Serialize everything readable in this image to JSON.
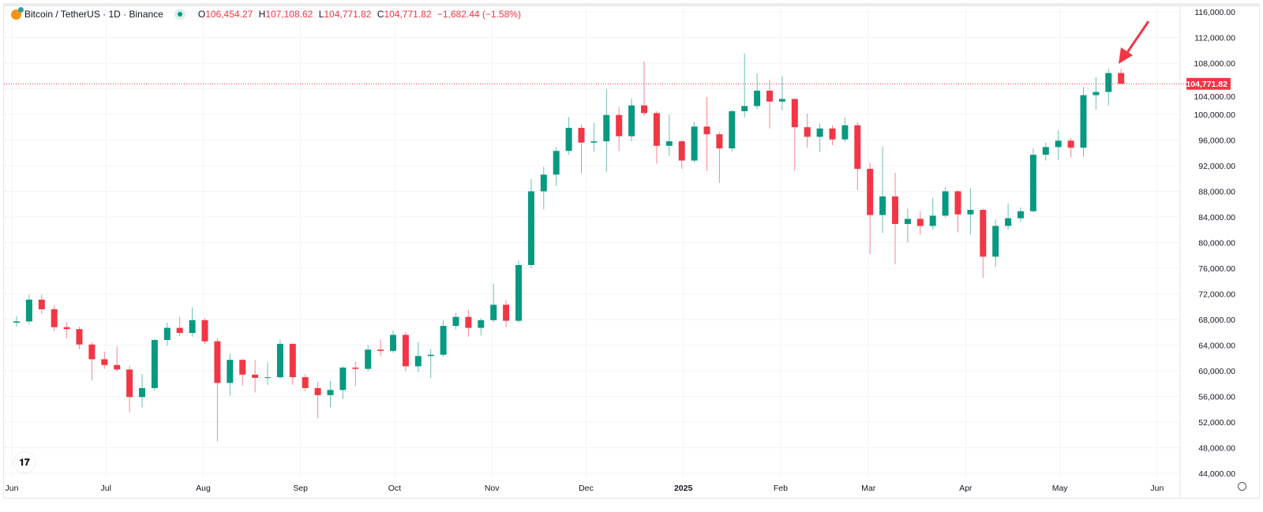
{
  "header": {
    "symbol": "Bitcoin / TetherUS · 1D · Binance",
    "icon": "bitcoin-coin-icon",
    "status_icon": "market-open-dot",
    "o_label": "O",
    "o_value": "106,454.27",
    "h_label": "H",
    "h_value": "107,108.62",
    "l_label": "L",
    "l_value": "104,771.82",
    "c_label": "C",
    "c_value": "104,771.82",
    "change": "−1,682.44 (−1.58%)"
  },
  "logo_text": "TV",
  "colors": {
    "up": "#089981",
    "down": "#f23645",
    "annotation_arrow": "#f23645"
  },
  "chart_data": {
    "type": "candlestick",
    "title": "",
    "xlabel": "",
    "ylabel": "",
    "ylim": [
      44000,
      116000
    ],
    "grid": true,
    "last_price": 104771.82,
    "last_price_label": "104,771.82",
    "y_ticks": [
      "116,000.00",
      "112,000.00",
      "108,000.00",
      "104,000.00",
      "100,000.00",
      "96,000.00",
      "92,000.00",
      "88,000.00",
      "84,000.00",
      "80,000.00",
      "76,000.00",
      "72,000.00",
      "68,000.00",
      "64,000.00",
      "60,000.00",
      "56,000.00",
      "52,000.00",
      "48,000.00",
      "44,000.00"
    ],
    "x_ticks": [
      {
        "label": "Jun",
        "date": "2024-06-01"
      },
      {
        "label": "Jul",
        "date": "2024-07-01"
      },
      {
        "label": "Aug",
        "date": "2024-08-01"
      },
      {
        "label": "Sep",
        "date": "2024-09-01"
      },
      {
        "label": "Oct",
        "date": "2024-10-01"
      },
      {
        "label": "Nov",
        "date": "2024-11-01"
      },
      {
        "label": "Dec",
        "date": "2024-12-01"
      },
      {
        "label": "2025",
        "date": "2025-01-01"
      },
      {
        "label": "Feb",
        "date": "2025-02-01"
      },
      {
        "label": "Mar",
        "date": "2025-03-01"
      },
      {
        "label": "Apr",
        "date": "2025-04-01"
      },
      {
        "label": "May",
        "date": "2025-05-01"
      },
      {
        "label": "Jun",
        "date": "2025-06-01"
      }
    ],
    "columns": [
      "date",
      "open",
      "high",
      "low",
      "close"
    ],
    "candles": [
      [
        "2024-06-01",
        67500,
        68500,
        66900,
        67700
      ],
      [
        "2024-06-05",
        67700,
        71900,
        67300,
        71100
      ],
      [
        "2024-06-09",
        71100,
        71900,
        68900,
        69600
      ],
      [
        "2024-06-13",
        69600,
        70200,
        66200,
        66800
      ],
      [
        "2024-06-17",
        66800,
        67600,
        65100,
        66500
      ],
      [
        "2024-06-21",
        66500,
        66900,
        63400,
        64100
      ],
      [
        "2024-06-25",
        64100,
        64500,
        58500,
        61800
      ],
      [
        "2024-06-29",
        61800,
        63000,
        60300,
        60900
      ],
      [
        "2024-07-03",
        60900,
        63800,
        59900,
        60200
      ],
      [
        "2024-07-07",
        60200,
        60800,
        53500,
        55900
      ],
      [
        "2024-07-11",
        55900,
        59500,
        54300,
        57300
      ],
      [
        "2024-07-15",
        57300,
        65000,
        56900,
        64800
      ],
      [
        "2024-07-19",
        64800,
        67500,
        63900,
        66700
      ],
      [
        "2024-07-23",
        66700,
        68400,
        65400,
        65900
      ],
      [
        "2024-07-27",
        65900,
        69900,
        65300,
        67900
      ],
      [
        "2024-07-31",
        67900,
        68200,
        64200,
        64600
      ],
      [
        "2024-08-04",
        64600,
        65100,
        49000,
        58100
      ],
      [
        "2024-08-08",
        58100,
        62700,
        56100,
        61700
      ],
      [
        "2024-08-12",
        61700,
        61900,
        57700,
        59400
      ],
      [
        "2024-08-16",
        59400,
        61700,
        56600,
        58900
      ],
      [
        "2024-08-20",
        58900,
        61300,
        57800,
        59000
      ],
      [
        "2024-08-24",
        59000,
        64900,
        58700,
        64200
      ],
      [
        "2024-08-28",
        64200,
        64300,
        57800,
        59000
      ],
      [
        "2024-09-01",
        59000,
        59500,
        56800,
        57300
      ],
      [
        "2024-09-05",
        57300,
        58300,
        52600,
        56200
      ],
      [
        "2024-09-09",
        56200,
        58400,
        54300,
        57000
      ],
      [
        "2024-09-13",
        57000,
        60700,
        55600,
        60500
      ],
      [
        "2024-09-17",
        60500,
        61400,
        57600,
        60300
      ],
      [
        "2024-09-21",
        60300,
        64000,
        59900,
        63300
      ],
      [
        "2024-09-25",
        63300,
        64900,
        62300,
        63100
      ],
      [
        "2024-09-29",
        63100,
        66300,
        62800,
        65600
      ],
      [
        "2024-10-03",
        65600,
        66100,
        59900,
        60700
      ],
      [
        "2024-10-07",
        60700,
        64500,
        59800,
        62300
      ],
      [
        "2024-10-11",
        62300,
        63400,
        58900,
        62500
      ],
      [
        "2024-10-15",
        62500,
        67900,
        62200,
        67000
      ],
      [
        "2024-10-19",
        67000,
        69000,
        66500,
        68400
      ],
      [
        "2024-10-23",
        68400,
        69500,
        65300,
        66700
      ],
      [
        "2024-10-27",
        66700,
        68200,
        65500,
        67900
      ],
      [
        "2024-10-31",
        67900,
        73600,
        67600,
        70300
      ],
      [
        "2024-11-04",
        70300,
        71000,
        66800,
        67800
      ],
      [
        "2024-11-08",
        67800,
        77200,
        67500,
        76500
      ],
      [
        "2024-11-12",
        76500,
        89900,
        76000,
        88000
      ],
      [
        "2024-11-16",
        88000,
        91800,
        85200,
        90600
      ],
      [
        "2024-11-20",
        90600,
        94900,
        88800,
        94300
      ],
      [
        "2024-11-24",
        94300,
        99600,
        93700,
        97900
      ],
      [
        "2024-11-28",
        97900,
        98400,
        90800,
        95600
      ],
      [
        "2024-12-02",
        95600,
        98700,
        94200,
        95800
      ],
      [
        "2024-12-06",
        95800,
        103900,
        91000,
        99900
      ],
      [
        "2024-12-10",
        99900,
        101200,
        94300,
        96600
      ],
      [
        "2024-12-14",
        96600,
        102500,
        95800,
        101400
      ],
      [
        "2024-12-18",
        101400,
        108300,
        99800,
        100200
      ],
      [
        "2024-12-22",
        100200,
        100500,
        92300,
        95100
      ],
      [
        "2024-12-26",
        95100,
        99900,
        93500,
        95800
      ],
      [
        "2024-12-30",
        95800,
        96000,
        91500,
        92800
      ],
      [
        "2025-01-03",
        92800,
        98900,
        92500,
        98100
      ],
      [
        "2025-01-07",
        98100,
        102700,
        91200,
        96900
      ],
      [
        "2025-01-11",
        96900,
        97300,
        89300,
        94700
      ],
      [
        "2025-01-15",
        94700,
        100700,
        94200,
        100500
      ],
      [
        "2025-01-19",
        100500,
        109500,
        99500,
        101300
      ],
      [
        "2025-01-23",
        101300,
        106400,
        100800,
        103700
      ],
      [
        "2025-01-27",
        103700,
        105300,
        97800,
        102000
      ],
      [
        "2025-01-31",
        102000,
        106000,
        100600,
        102400
      ],
      [
        "2025-02-04",
        102400,
        102500,
        91200,
        98000
      ],
      [
        "2025-02-08",
        98000,
        100100,
        94800,
        96500
      ],
      [
        "2025-02-12",
        96500,
        98600,
        94100,
        97800
      ],
      [
        "2025-02-16",
        97800,
        98300,
        95200,
        96100
      ],
      [
        "2025-02-20",
        96100,
        99500,
        95700,
        98300
      ],
      [
        "2025-02-24",
        98300,
        98800,
        88200,
        91500
      ],
      [
        "2025-02-28",
        91500,
        92500,
        78200,
        84300
      ],
      [
        "2025-03-04",
        84300,
        95000,
        81500,
        87200
      ],
      [
        "2025-03-08",
        87200,
        90900,
        76600,
        82900
      ],
      [
        "2025-03-12",
        82900,
        85300,
        80000,
        83700
      ],
      [
        "2025-03-16",
        83700,
        84900,
        81200,
        82600
      ],
      [
        "2025-03-20",
        82600,
        87000,
        82000,
        84200
      ],
      [
        "2025-03-24",
        84200,
        88700,
        83900,
        88000
      ],
      [
        "2025-03-28",
        88000,
        88200,
        81600,
        84400
      ],
      [
        "2025-04-01",
        84400,
        88500,
        81300,
        85100
      ],
      [
        "2025-04-05",
        85100,
        85300,
        74500,
        77800
      ],
      [
        "2025-04-09",
        77800,
        83600,
        76200,
        82600
      ],
      [
        "2025-04-13",
        82600,
        86100,
        82000,
        83800
      ],
      [
        "2025-04-17",
        83800,
        85500,
        83200,
        84900
      ],
      [
        "2025-04-21",
        84900,
        94700,
        84700,
        93700
      ],
      [
        "2025-04-25",
        93700,
        95600,
        92800,
        94900
      ],
      [
        "2025-04-29",
        94900,
        97500,
        92900,
        95900
      ],
      [
        "2025-05-03",
        95900,
        96300,
        93300,
        94800
      ],
      [
        "2025-05-07",
        94800,
        104300,
        93400,
        103000
      ],
      [
        "2025-05-11",
        103000,
        105800,
        100700,
        103500
      ],
      [
        "2025-05-15",
        103500,
        107100,
        101400,
        106450
      ],
      [
        "2025-05-19",
        106454.27,
        107108.62,
        104771.82,
        104771.82
      ]
    ]
  }
}
